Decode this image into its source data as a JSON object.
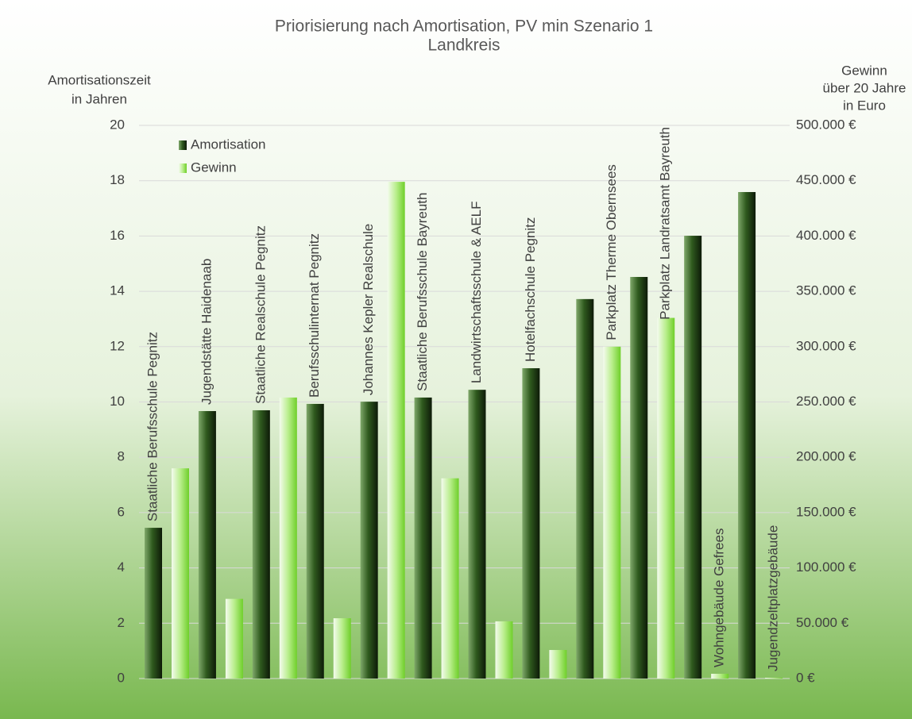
{
  "chart_data": {
    "type": "bar",
    "title": [
      "Priorisierung nach Amortisation, PV min Szenario 1",
      "Landkreis"
    ],
    "ylabel": [
      "Amortisationszeit",
      "in Jahren"
    ],
    "y2label": [
      "Gewinn",
      "über 20 Jahre",
      "in Euro"
    ],
    "categories": [
      "Staatliche Berufsschule Pegnitz",
      "Jugendstätte Haidenaab",
      "Staatliche Realschule Pegnitz",
      "Berufsschulinternat Pegnitz",
      "Johannes Kepler Realschule",
      "Staatliche Berufsschule Bayreuth",
      "Landwirtschaftsschule & AELF",
      "Hotelfachschule Pegnitz",
      "Parkplatz Therme Obernsees",
      "Parkplatz Landratsamt Bayreuth",
      "Wohngebäude Gefrees",
      "Jugendzeltplatzgebäude"
    ],
    "series": [
      {
        "name": "Amortisation",
        "color": "#2f5a1e",
        "values": [
          5.45,
          9.67,
          9.7,
          9.93,
          10.01,
          10.16,
          10.44,
          11.22,
          13.72,
          14.52,
          16.01,
          17.59
        ]
      },
      {
        "name": "Gewinn",
        "color": "#8ee04a",
        "axis": "y2",
        "values": [
          190000,
          72000,
          254000,
          54500,
          449000,
          181000,
          51700,
          25800,
          300000,
          326000,
          4300,
          700
        ]
      }
    ],
    "ylim": [
      0,
      20
    ],
    "yticks": [
      0,
      2,
      4,
      6,
      8,
      10,
      12,
      14,
      16,
      18,
      20
    ],
    "y2lim": [
      0,
      500000
    ],
    "y2ticks": [
      {
        "value": 0,
        "label": "0 €"
      },
      {
        "value": 50000,
        "label": "50.000 €"
      },
      {
        "value": 100000,
        "label": "100.000 €"
      },
      {
        "value": 150000,
        "label": "150.000 €"
      },
      {
        "value": 200000,
        "label": "200.000 €"
      },
      {
        "value": 250000,
        "label": "250.000 €"
      },
      {
        "value": 300000,
        "label": "300.000 €"
      },
      {
        "value": 350000,
        "label": "350.000 €"
      },
      {
        "value": 400000,
        "label": "400.000 €"
      },
      {
        "value": 450000,
        "label": "450.000 €"
      },
      {
        "value": 500000,
        "label": "500.000 €"
      }
    ],
    "grid": true,
    "legend": "upper left"
  }
}
